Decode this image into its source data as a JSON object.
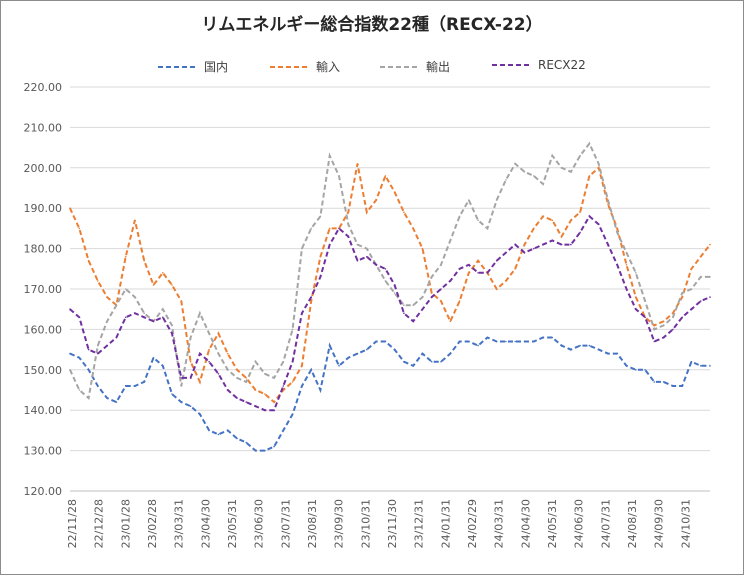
{
  "chart_data": {
    "type": "line",
    "title": "リムエネルギー総合指数22種（RECX-22）",
    "ylim": [
      120,
      220
    ],
    "yticks": [
      "120.00",
      "130.00",
      "140.00",
      "150.00",
      "160.00",
      "170.00",
      "180.00",
      "190.00",
      "200.00",
      "210.00",
      "220.00"
    ],
    "xticks": [
      "22/11/28",
      "22/12/28",
      "23/01/28",
      "23/02/28",
      "23/03/31",
      "23/04/30",
      "23/05/31",
      "23/06/30",
      "23/07/31",
      "23/08/31",
      "23/09/30",
      "23/10/31",
      "23/11/30",
      "23/12/31",
      "24/01/31",
      "24/02/29",
      "24/03/31",
      "24/04/30",
      "24/05/31",
      "24/06/30",
      "24/07/31",
      "24/08/31",
      "24/09/30",
      "24/10/31"
    ],
    "grid": true,
    "legend_position": "top",
    "series": [
      {
        "name": "国内",
        "color": "#4472c4",
        "values": [
          154,
          153,
          150,
          146,
          143,
          142,
          146,
          146,
          147,
          153,
          151,
          144,
          142,
          141,
          139,
          135,
          134,
          135,
          133,
          132,
          130,
          130,
          131,
          135,
          139,
          146,
          150,
          145,
          156,
          151,
          153,
          154,
          155,
          157,
          157,
          155,
          152,
          151,
          154,
          152,
          152,
          154,
          157,
          157,
          156,
          158,
          157,
          157,
          157,
          157,
          157,
          158,
          158,
          156,
          155,
          156,
          156,
          155,
          154,
          154,
          151,
          150,
          150,
          147,
          147,
          146,
          146,
          152,
          151,
          151
        ]
      },
      {
        "name": "輸入",
        "color": "#ed7d31",
        "values": [
          190,
          185,
          177,
          172,
          168,
          166,
          178,
          187,
          177,
          171,
          174,
          171,
          167,
          152,
          147,
          155,
          159,
          154,
          150,
          148,
          145,
          144,
          142,
          145,
          147,
          151,
          167,
          178,
          185,
          185,
          189,
          201,
          189,
          192,
          198,
          194,
          189,
          185,
          180,
          169,
          167,
          162,
          167,
          174,
          177,
          174,
          170,
          172,
          175,
          181,
          185,
          188,
          187,
          183,
          187,
          189,
          198,
          200,
          191,
          185,
          176,
          168,
          163,
          161,
          162,
          164,
          168,
          175,
          178,
          181
        ]
      },
      {
        "name": "輸出",
        "color": "#a5a5a5",
        "values": [
          150,
          145,
          143,
          156,
          162,
          166,
          170,
          168,
          164,
          162,
          165,
          161,
          146,
          158,
          164,
          159,
          154,
          150,
          148,
          147,
          152,
          149,
          148,
          152,
          160,
          180,
          185,
          188,
          203,
          198,
          186,
          181,
          180,
          176,
          172,
          169,
          166,
          166,
          168,
          173,
          176,
          182,
          188,
          192,
          187,
          185,
          192,
          197,
          201,
          199,
          198,
          196,
          203,
          200,
          199,
          203,
          206,
          201,
          192,
          184,
          179,
          174,
          167,
          160,
          161,
          163,
          169,
          170,
          173,
          173
        ]
      },
      {
        "name": "RECX22",
        "color": "#7030a0",
        "values": [
          165,
          163,
          155,
          154,
          156,
          158,
          163,
          164,
          163,
          162,
          163,
          159,
          148,
          148,
          154,
          152,
          149,
          145,
          143,
          142,
          141,
          140,
          140,
          146,
          152,
          164,
          168,
          173,
          181,
          185,
          183,
          177,
          178,
          176,
          175,
          171,
          164,
          162,
          165,
          168,
          170,
          172,
          175,
          176,
          174,
          174,
          177,
          179,
          181,
          179,
          180,
          181,
          182,
          181,
          181,
          184,
          188,
          186,
          181,
          176,
          170,
          165,
          163,
          157,
          158,
          160,
          163,
          165,
          167,
          168
        ]
      }
    ]
  }
}
